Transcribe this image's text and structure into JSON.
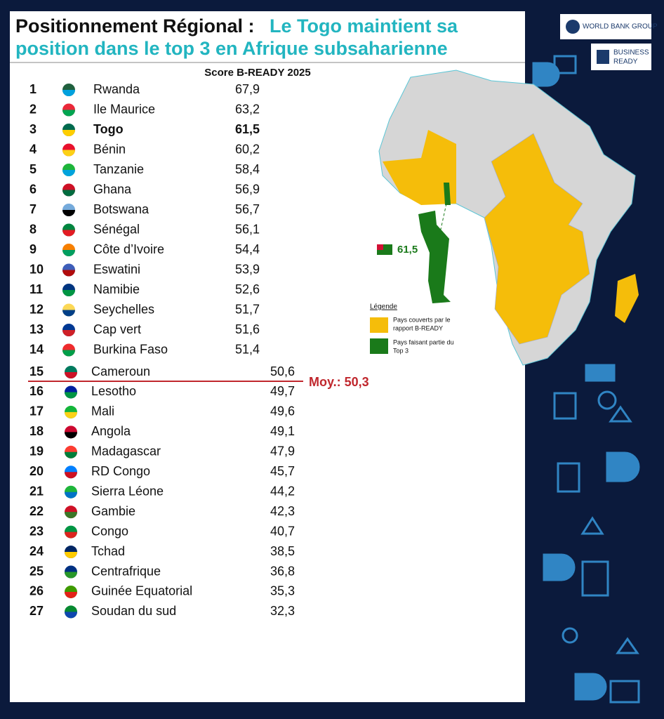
{
  "header": {
    "title_lead": "Positionnement Régional  :",
    "title_highlight": "Le Togo maintient sa",
    "title_highlight_2": "position dans le top 3 en Afrique subsaharienne"
  },
  "logos": {
    "world_bank": "WORLD BANK GROUP",
    "business_ready": [
      "BUSINESS",
      "READY"
    ]
  },
  "table": {
    "column_header": "Score B-READY 2025",
    "rows": [
      [
        "1",
        "Rwanda",
        "67,9"
      ],
      [
        "2",
        "Ile Maurice",
        "63,2"
      ],
      [
        "3",
        "Togo",
        "61,5"
      ],
      [
        "4",
        "Bénin",
        "60,2"
      ],
      [
        "5",
        "Tanzanie",
        "58,4"
      ],
      [
        "6",
        "Ghana",
        "56,9"
      ],
      [
        "7",
        "Botswana",
        "56,7"
      ],
      [
        "8",
        "Sénégal",
        "56,1"
      ],
      [
        "9",
        "Côte d’Ivoire",
        "54,4"
      ],
      [
        "10",
        "Eswatini",
        "53,9"
      ],
      [
        "11",
        "Namibie",
        "52,6"
      ],
      [
        "12",
        "Seychelles",
        "51,7"
      ],
      [
        "13",
        "Cap vert",
        "51,6"
      ],
      [
        "14",
        "Burkina Faso",
        "51,4"
      ],
      [
        "15",
        "Cameroun",
        "50,6"
      ],
      [
        "16",
        "Lesotho",
        "49,7"
      ],
      [
        "17",
        "Mali",
        "49,6"
      ],
      [
        "18",
        "Angola",
        "49,1"
      ],
      [
        "19",
        "Madagascar",
        "47,9"
      ],
      [
        "20",
        "RD Congo",
        "45,7"
      ],
      [
        "21",
        "Sierra Léone",
        "44,2"
      ],
      [
        "22",
        "Gambie",
        "42,3"
      ],
      [
        "23",
        "Congo",
        "40,7"
      ],
      [
        "24",
        "Tchad",
        "38,5"
      ],
      [
        "25",
        "Centrafrique",
        "36,8"
      ],
      [
        "26",
        "Guinée Equatorial",
        "35,3"
      ],
      [
        "27",
        "Soudan du sud",
        "32,3"
      ]
    ],
    "average": "Moy.: 50,3"
  },
  "map": {
    "togo_score": "61,5",
    "legend": {
      "title": "Légende",
      "items": [
        [
          "Pays couverts par le",
          "rapport B-READY"
        ],
        [
          "Pays faisant partie du",
          "Top 3"
        ]
      ]
    }
  }
}
